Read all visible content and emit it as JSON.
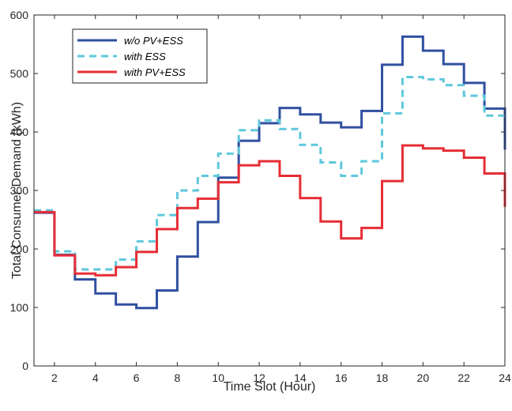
{
  "chart_data": {
    "type": "line",
    "xlabel": "Time Slot (Hour)",
    "ylabel": "Total Consumer Demand (kWh)",
    "xlim": [
      1,
      24
    ],
    "ylim": [
      0,
      600
    ],
    "xticks": [
      2,
      4,
      6,
      8,
      10,
      12,
      14,
      16,
      18,
      20,
      22,
      24
    ],
    "yticks": [
      0,
      100,
      200,
      300,
      400,
      500,
      600
    ],
    "legend": "top-left",
    "grid": false,
    "x": [
      1,
      2,
      3,
      4,
      5,
      6,
      7,
      8,
      9,
      10,
      11,
      12,
      13,
      14,
      15,
      16,
      17,
      18,
      19,
      20,
      21,
      22,
      23,
      24
    ],
    "series": [
      {
        "name": "w/o PV+ESS",
        "color": "#3050a0",
        "style": "solid",
        "values": [
          262,
          190,
          148,
          124,
          105,
          99,
          129,
          187,
          246,
          322,
          385,
          415,
          441,
          430,
          416,
          408,
          436,
          515,
          563,
          539,
          516,
          484,
          440,
          370
        ]
      },
      {
        "name": "with ESS",
        "color": "#5ec8dc",
        "style": "dashed",
        "values": [
          266,
          196,
          165,
          165,
          182,
          213,
          258,
          300,
          325,
          363,
          403,
          420,
          405,
          378,
          348,
          325,
          350,
          432,
          494,
          490,
          480,
          462,
          428,
          428
        ]
      },
      {
        "name": "with PV+ESS",
        "color": "#e62e36",
        "style": "solid",
        "values": [
          263,
          189,
          158,
          155,
          169,
          195,
          234,
          270,
          286,
          314,
          343,
          350,
          325,
          287,
          247,
          218,
          236,
          316,
          377,
          372,
          368,
          356,
          329,
          272
        ]
      }
    ]
  }
}
